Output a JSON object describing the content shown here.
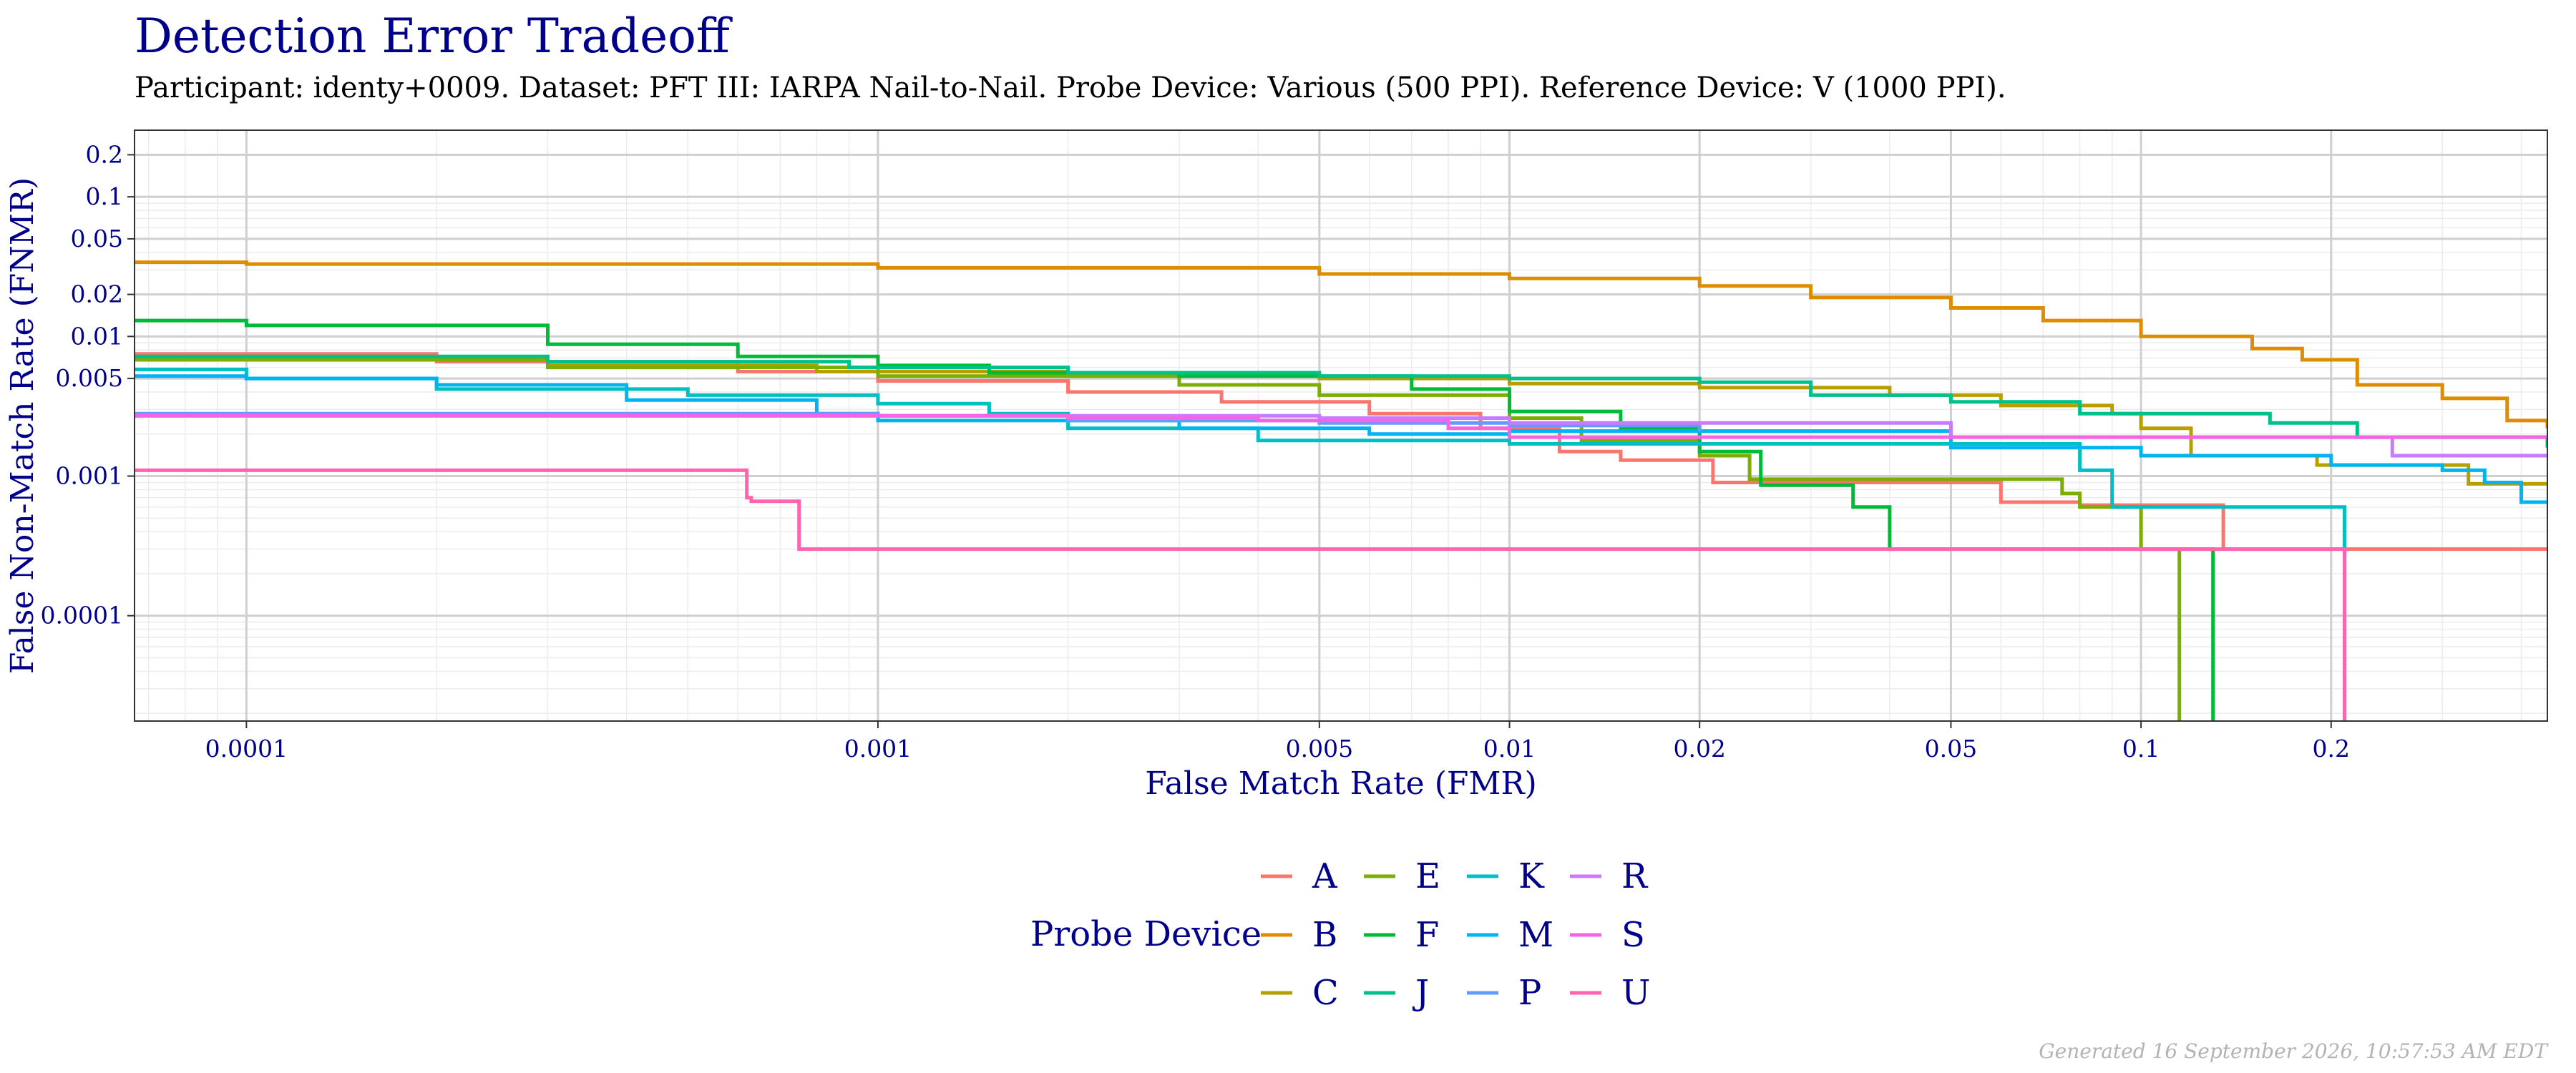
{
  "title": "Detection Error Tradeoff",
  "subtitle": "Participant: identy+0009. Dataset: PFT III: IARPA Nail-to-Nail. Probe Device: Various (500 PPI). Reference Device: V (1000 PPI).",
  "footer": "Generated 16 September 2026, 10:57:53 AM EDT",
  "chart_data": {
    "type": "line",
    "title": "Detection Error Tradeoff",
    "xlabel": "False Match Rate (FMR)",
    "ylabel": "False Non-Match Rate (FNMR)",
    "x_scale": "log",
    "y_scale": "log",
    "xlim": [
      6.65e-05,
      0.44
    ],
    "ylim": [
      1.76e-05,
      0.3
    ],
    "x_ticks": [
      0.0001,
      0.001,
      0.005,
      0.01,
      0.02,
      0.05,
      0.1,
      0.2
    ],
    "x_tick_labels": [
      "0.0001",
      "0.001",
      "0.005",
      "0.01",
      "0.02",
      "0.05",
      "0.1",
      "0.2"
    ],
    "y_ticks": [
      0.0001,
      0.001,
      0.005,
      0.01,
      0.02,
      0.05,
      0.1,
      0.2
    ],
    "y_tick_labels": [
      "0.0001",
      "0.001",
      "0.005",
      "0.01",
      "0.02",
      "0.05",
      "0.1",
      "0.2"
    ],
    "grid": true,
    "legend": {
      "title": "Probe Device",
      "position": "bottom"
    },
    "series": [
      {
        "name": "A",
        "color": "#F8766D",
        "points": [
          [
            6.65e-05,
            0.0075
          ],
          [
            0.0002,
            0.0066
          ],
          [
            0.0006,
            0.0056
          ],
          [
            0.001,
            0.0048
          ],
          [
            0.002,
            0.004
          ],
          [
            0.0035,
            0.0034
          ],
          [
            0.006,
            0.0028
          ],
          [
            0.009,
            0.0022
          ],
          [
            0.012,
            0.0015
          ],
          [
            0.015,
            0.0013
          ],
          [
            0.021,
            0.0009
          ],
          [
            0.03,
            0.0009
          ],
          [
            0.055,
            0.0009
          ],
          [
            0.06,
            0.00065
          ],
          [
            0.08,
            0.00062
          ],
          [
            0.13,
            0.00062
          ],
          [
            0.135,
            0.0003
          ],
          [
            0.44,
            0.0003
          ]
        ]
      },
      {
        "name": "B",
        "color": "#DE8C00",
        "points": [
          [
            6.65e-05,
            0.034
          ],
          [
            0.0001,
            0.033
          ],
          [
            0.001,
            0.031
          ],
          [
            0.005,
            0.028
          ],
          [
            0.01,
            0.026
          ],
          [
            0.02,
            0.023
          ],
          [
            0.03,
            0.019
          ],
          [
            0.05,
            0.016
          ],
          [
            0.07,
            0.013
          ],
          [
            0.1,
            0.01
          ],
          [
            0.15,
            0.0082
          ],
          [
            0.18,
            0.0068
          ],
          [
            0.22,
            0.0045
          ],
          [
            0.3,
            0.0036
          ],
          [
            0.38,
            0.0025
          ],
          [
            0.44,
            0.0022
          ]
        ]
      },
      {
        "name": "C",
        "color": "#B79F00",
        "points": [
          [
            6.65e-05,
            0.0068
          ],
          [
            0.0003,
            0.0062
          ],
          [
            0.0008,
            0.0056
          ],
          [
            0.002,
            0.0054
          ],
          [
            0.005,
            0.005
          ],
          [
            0.01,
            0.0046
          ],
          [
            0.02,
            0.0043
          ],
          [
            0.04,
            0.0038
          ],
          [
            0.06,
            0.0032
          ],
          [
            0.09,
            0.0028
          ],
          [
            0.1,
            0.0022
          ],
          [
            0.12,
            0.0014
          ],
          [
            0.19,
            0.0012
          ],
          [
            0.3,
            0.0012
          ],
          [
            0.33,
            0.00088
          ],
          [
            0.44,
            0.00088
          ]
        ]
      },
      {
        "name": "E",
        "color": "#7CAE00",
        "points": [
          [
            6.65e-05,
            0.0068
          ],
          [
            0.0003,
            0.006
          ],
          [
            0.001,
            0.0052
          ],
          [
            0.003,
            0.0045
          ],
          [
            0.005,
            0.0038
          ],
          [
            0.01,
            0.0026
          ],
          [
            0.013,
            0.0018
          ],
          [
            0.02,
            0.0014
          ],
          [
            0.024,
            0.00095
          ],
          [
            0.06,
            0.00095
          ],
          [
            0.075,
            0.00075
          ],
          [
            0.08,
            0.0006
          ],
          [
            0.1,
            0.0003
          ],
          [
            0.115,
            0.0003
          ],
          [
            0.115,
            1.76e-05
          ]
        ]
      },
      {
        "name": "F",
        "color": "#00BA38",
        "points": [
          [
            6.65e-05,
            0.013
          ],
          [
            0.0001,
            0.012
          ],
          [
            0.0003,
            0.0088
          ],
          [
            0.0006,
            0.0072
          ],
          [
            0.001,
            0.0062
          ],
          [
            0.0015,
            0.0055
          ],
          [
            0.003,
            0.0052
          ],
          [
            0.007,
            0.0042
          ],
          [
            0.01,
            0.0029
          ],
          [
            0.015,
            0.0022
          ],
          [
            0.02,
            0.0015
          ],
          [
            0.025,
            0.00086
          ],
          [
            0.035,
            0.0006
          ],
          [
            0.04,
            0.0003
          ],
          [
            0.1,
            0.0003
          ],
          [
            0.13,
            0.0003
          ],
          [
            0.13,
            1.76e-05
          ]
        ]
      },
      {
        "name": "J",
        "color": "#00C08B",
        "points": [
          [
            6.65e-05,
            0.0072
          ],
          [
            0.0003,
            0.0066
          ],
          [
            0.0009,
            0.006
          ],
          [
            0.002,
            0.0055
          ],
          [
            0.005,
            0.0052
          ],
          [
            0.01,
            0.005
          ],
          [
            0.02,
            0.0047
          ],
          [
            0.03,
            0.0038
          ],
          [
            0.05,
            0.0034
          ],
          [
            0.08,
            0.0028
          ],
          [
            0.13,
            0.0028
          ],
          [
            0.16,
            0.0024
          ],
          [
            0.22,
            0.0019
          ],
          [
            0.44,
            0.0016
          ]
        ]
      },
      {
        "name": "K",
        "color": "#00BFC4",
        "points": [
          [
            6.65e-05,
            0.0058
          ],
          [
            0.0001,
            0.005
          ],
          [
            0.0002,
            0.0042
          ],
          [
            0.0005,
            0.0038
          ],
          [
            0.001,
            0.0033
          ],
          [
            0.0015,
            0.0028
          ],
          [
            0.002,
            0.0022
          ],
          [
            0.004,
            0.0018
          ],
          [
            0.01,
            0.0017
          ],
          [
            0.02,
            0.0017
          ],
          [
            0.04,
            0.0017
          ],
          [
            0.08,
            0.0011
          ],
          [
            0.09,
            0.0006
          ],
          [
            0.21,
            0.0006
          ],
          [
            0.21,
            1.76e-05
          ]
        ]
      },
      {
        "name": "M",
        "color": "#00B4EF",
        "points": [
          [
            6.65e-05,
            0.0052
          ],
          [
            0.0001,
            0.005
          ],
          [
            0.0002,
            0.0045
          ],
          [
            0.0004,
            0.0035
          ],
          [
            0.0008,
            0.0028
          ],
          [
            0.001,
            0.0025
          ],
          [
            0.003,
            0.0022
          ],
          [
            0.006,
            0.002
          ],
          [
            0.01,
            0.0021
          ],
          [
            0.02,
            0.0021
          ],
          [
            0.05,
            0.0016
          ],
          [
            0.1,
            0.0014
          ],
          [
            0.2,
            0.0012
          ],
          [
            0.3,
            0.0011
          ],
          [
            0.35,
            0.0009
          ],
          [
            0.4,
            0.00065
          ],
          [
            0.44,
            0.00065
          ]
        ]
      },
      {
        "name": "P",
        "color": "#619CFF",
        "points": [
          [
            6.65e-05,
            0.0028
          ],
          [
            0.001,
            0.0027
          ],
          [
            0.002,
            0.0025
          ],
          [
            0.005,
            0.0024
          ],
          [
            0.01,
            0.0023
          ],
          [
            0.02,
            0.0021
          ]
        ]
      },
      {
        "name": "R",
        "color": "#C77CFF",
        "points": [
          [
            6.65e-05,
            0.0027
          ],
          [
            0.005,
            0.0026
          ],
          [
            0.01,
            0.0024
          ],
          [
            0.05,
            0.0019
          ],
          [
            0.1,
            0.0019
          ],
          [
            0.2,
            0.0019
          ],
          [
            0.25,
            0.0014
          ],
          [
            0.44,
            0.0014
          ]
        ]
      },
      {
        "name": "S",
        "color": "#F564E3",
        "points": [
          [
            6.65e-05,
            0.0027
          ],
          [
            0.002,
            0.0026
          ],
          [
            0.004,
            0.0025
          ],
          [
            0.008,
            0.0022
          ],
          [
            0.01,
            0.0019
          ],
          [
            0.05,
            0.0019
          ],
          [
            0.44,
            0.0019
          ]
        ]
      },
      {
        "name": "U",
        "color": "#FF64B0",
        "points": [
          [
            6.65e-05,
            0.0011
          ],
          [
            0.0006,
            0.0011
          ],
          [
            0.00062,
            0.0007
          ],
          [
            0.00063,
            0.00066
          ],
          [
            0.00075,
            0.00066
          ],
          [
            0.00075,
            0.0003
          ],
          [
            0.21,
            0.0003
          ],
          [
            0.21,
            1.76e-05
          ]
        ]
      }
    ]
  }
}
